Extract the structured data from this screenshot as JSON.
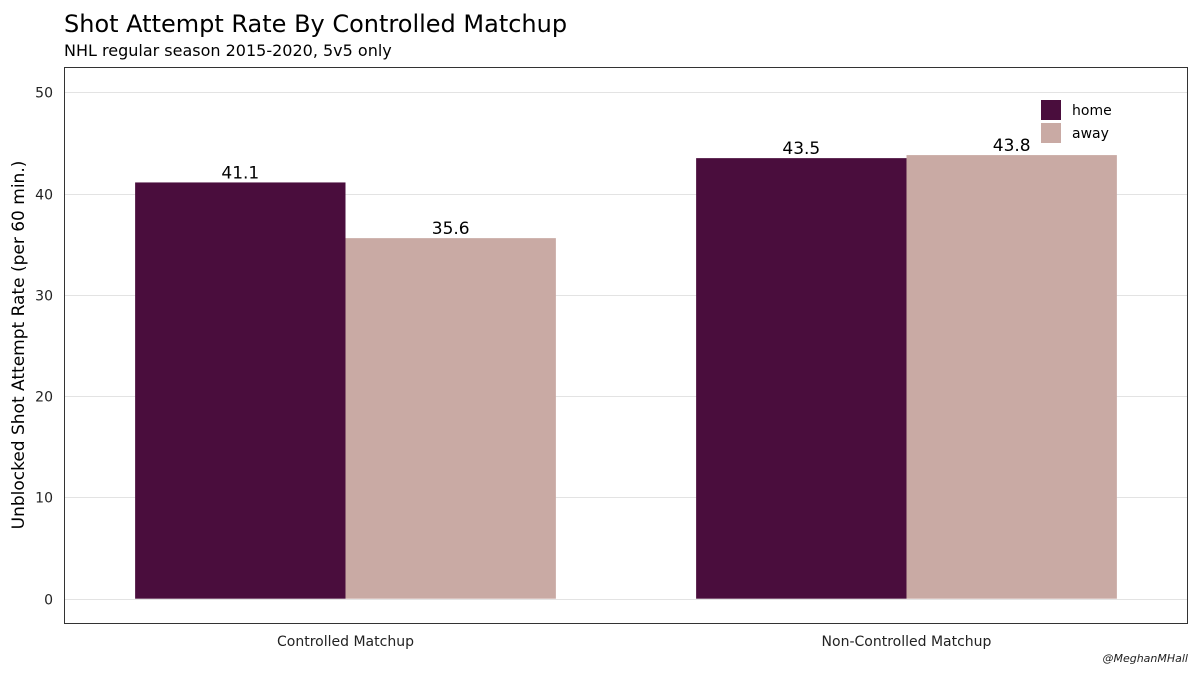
{
  "chart_data": {
    "type": "bar",
    "title": "Shot Attempt Rate By Controlled Matchup",
    "subtitle": "NHL regular season 2015-2020, 5v5 only",
    "xlabel": "",
    "ylabel": "Unblocked Shot Attempt Rate (per 60 min.)",
    "categories": [
      "Controlled Matchup",
      "Non-Controlled Matchup"
    ],
    "series": [
      {
        "name": "home",
        "values": [
          41.1,
          43.5
        ],
        "color": "#4a0d3d"
      },
      {
        "name": "away",
        "values": [
          35.6,
          43.8
        ],
        "color": "#c9aaa4"
      }
    ],
    "data_labels": [
      [
        "41.1",
        "43.5"
      ],
      [
        "35.6",
        "43.8"
      ]
    ],
    "ylim": [
      -2.4,
      52.4
    ],
    "yticks": [
      0,
      10,
      20,
      30,
      40,
      50
    ],
    "grid": true,
    "legend_position": "top-right"
  },
  "credit": "@MeghanMHall"
}
